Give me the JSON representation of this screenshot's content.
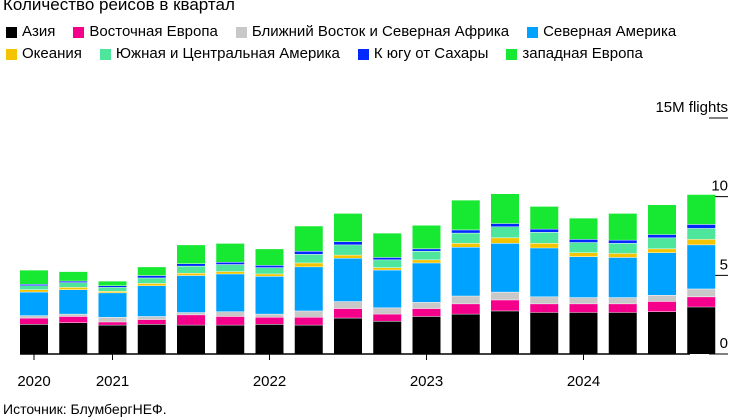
{
  "title": "Количество рейсов в квартал",
  "source": "Источник: БлумбергНЕФ.",
  "chart_data": {
    "type": "bar",
    "stacked": true,
    "x": [
      "2020 Q1",
      "2020 Q2",
      "2020 Q3",
      "2020 Q4",
      "2021 Q1",
      "2021 Q2",
      "2021 Q3",
      "2021 Q4",
      "2022 Q1",
      "2022 Q2",
      "2022 Q3",
      "2022 Q4",
      "2023 Q1",
      "2023 Q2",
      "2023 Q3",
      "2023 Q4",
      "2024 Q1",
      "2024 Q2"
    ],
    "xticks": [
      {
        "label": "2020",
        "index": 0
      },
      {
        "label": "2021",
        "index": 2
      },
      {
        "label": "2022",
        "index": 6
      },
      {
        "label": "2023",
        "index": 10
      },
      {
        "label": "2024",
        "index": 14
      }
    ],
    "yticks": [
      {
        "value": 0,
        "label": "0"
      },
      {
        "value": 5,
        "label": "5"
      },
      {
        "value": 10,
        "label": "10"
      },
      {
        "value": 15,
        "label": "15M flights"
      }
    ],
    "ylim": [
      0,
      15
    ],
    "legend_position": "top",
    "grid": false,
    "series": [
      {
        "name": "Азия",
        "color": "#000000",
        "values": [
          1.9,
          2.0,
          1.85,
          1.9,
          1.85,
          1.85,
          1.9,
          1.85,
          2.3,
          2.1,
          2.4,
          2.55,
          2.75,
          2.65,
          2.65,
          2.65,
          2.7,
          3.0
        ]
      },
      {
        "name": "Восточная Европа",
        "color": "#f5008b",
        "values": [
          0.4,
          0.4,
          0.2,
          0.3,
          0.65,
          0.55,
          0.45,
          0.5,
          0.6,
          0.45,
          0.5,
          0.65,
          0.7,
          0.55,
          0.55,
          0.55,
          0.65,
          0.65
        ]
      },
      {
        "name": "Ближний Восток и Северная Африка",
        "color": "#c8c8c8",
        "values": [
          0.15,
          0.15,
          0.3,
          0.2,
          0.15,
          0.3,
          0.2,
          0.4,
          0.45,
          0.4,
          0.4,
          0.5,
          0.5,
          0.45,
          0.4,
          0.4,
          0.4,
          0.5
        ]
      },
      {
        "name": "Северная Америка",
        "color": "#00a2ff",
        "values": [
          1.5,
          1.55,
          1.55,
          1.95,
          2.35,
          2.4,
          2.4,
          2.8,
          2.75,
          2.4,
          2.5,
          3.1,
          3.1,
          3.1,
          2.6,
          2.55,
          2.7,
          2.8
        ]
      },
      {
        "name": "Океания",
        "color": "#f5c400",
        "values": [
          0.15,
          0.15,
          0.1,
          0.15,
          0.15,
          0.15,
          0.15,
          0.25,
          0.2,
          0.15,
          0.2,
          0.25,
          0.35,
          0.3,
          0.25,
          0.25,
          0.25,
          0.35
        ]
      },
      {
        "name": "Южная и Центральная Америка",
        "color": "#4ee59d",
        "values": [
          0.25,
          0.3,
          0.25,
          0.35,
          0.45,
          0.45,
          0.4,
          0.55,
          0.65,
          0.5,
          0.55,
          0.65,
          0.7,
          0.7,
          0.65,
          0.65,
          0.7,
          0.7
        ]
      },
      {
        "name": "К югу от Сахары",
        "color": "#0028ff",
        "values": [
          0.1,
          0.1,
          0.1,
          0.15,
          0.15,
          0.15,
          0.15,
          0.2,
          0.2,
          0.15,
          0.15,
          0.2,
          0.2,
          0.2,
          0.2,
          0.2,
          0.2,
          0.25
        ]
      },
      {
        "name": "западная Европа",
        "color": "#17e831",
        "values": [
          0.9,
          0.6,
          0.3,
          0.55,
          1.2,
          1.2,
          1.05,
          1.6,
          1.8,
          1.55,
          1.5,
          1.9,
          1.9,
          1.45,
          1.35,
          1.7,
          1.9,
          1.9
        ]
      }
    ]
  }
}
